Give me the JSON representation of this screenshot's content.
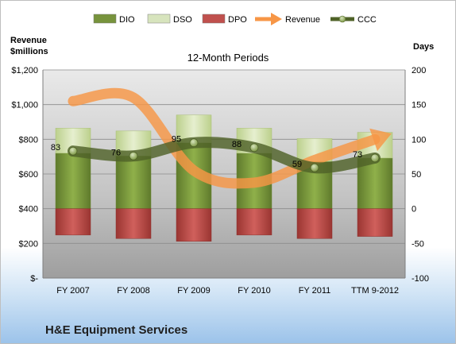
{
  "chart_data": {
    "type": "bar",
    "title": "12-Month Periods",
    "company": "H&E Equipment Services",
    "categories": [
      "FY 2007",
      "FY 2008",
      "FY 2009",
      "FY 2010",
      "FY 2011",
      "TTM 9-2012"
    ],
    "y_left": {
      "label_line1": "Revenue",
      "label_line2": "$millions",
      "range": [
        0,
        1200
      ],
      "ticks": [
        "$-",
        "$200",
        "$400",
        "$600",
        "$800",
        "$1,000",
        "$1,200"
      ]
    },
    "y_right": {
      "label": "Days",
      "range": [
        -100,
        200
      ],
      "ticks": [
        "-100",
        "-50",
        "0",
        "50",
        "100",
        "150",
        "200"
      ]
    },
    "legend": {
      "placement": "top",
      "entries": [
        "DIO",
        "DSO",
        "DPO",
        "Revenue",
        "CCC"
      ]
    },
    "series": [
      {
        "name": "DIO",
        "axis": "right",
        "values": [
          80,
          76,
          95,
          80,
          68,
          73
        ]
      },
      {
        "name": "DSO",
        "axis": "right",
        "values": [
          36,
          36,
          40,
          36,
          33,
          37
        ]
      },
      {
        "name": "DPO",
        "axis": "right",
        "values": [
          -38,
          -43,
          -47,
          -38,
          -43,
          -40
        ]
      },
      {
        "name": "Revenue",
        "axis": "left",
        "values": [
          1020,
          1040,
          620,
          550,
          680,
          800
        ]
      },
      {
        "name": "CCC",
        "axis": "right",
        "values": [
          83,
          76,
          95,
          88,
          59,
          73
        ]
      }
    ],
    "ccc_labels": [
      "83",
      "76",
      "95",
      "88",
      "59",
      "73"
    ],
    "colors": {
      "DIO": "#77933c",
      "DSO": "#d7e4bd",
      "DPO": "#c0504d",
      "Revenue": "#f79646",
      "CCC": "#4f6228"
    },
    "grid": true
  }
}
